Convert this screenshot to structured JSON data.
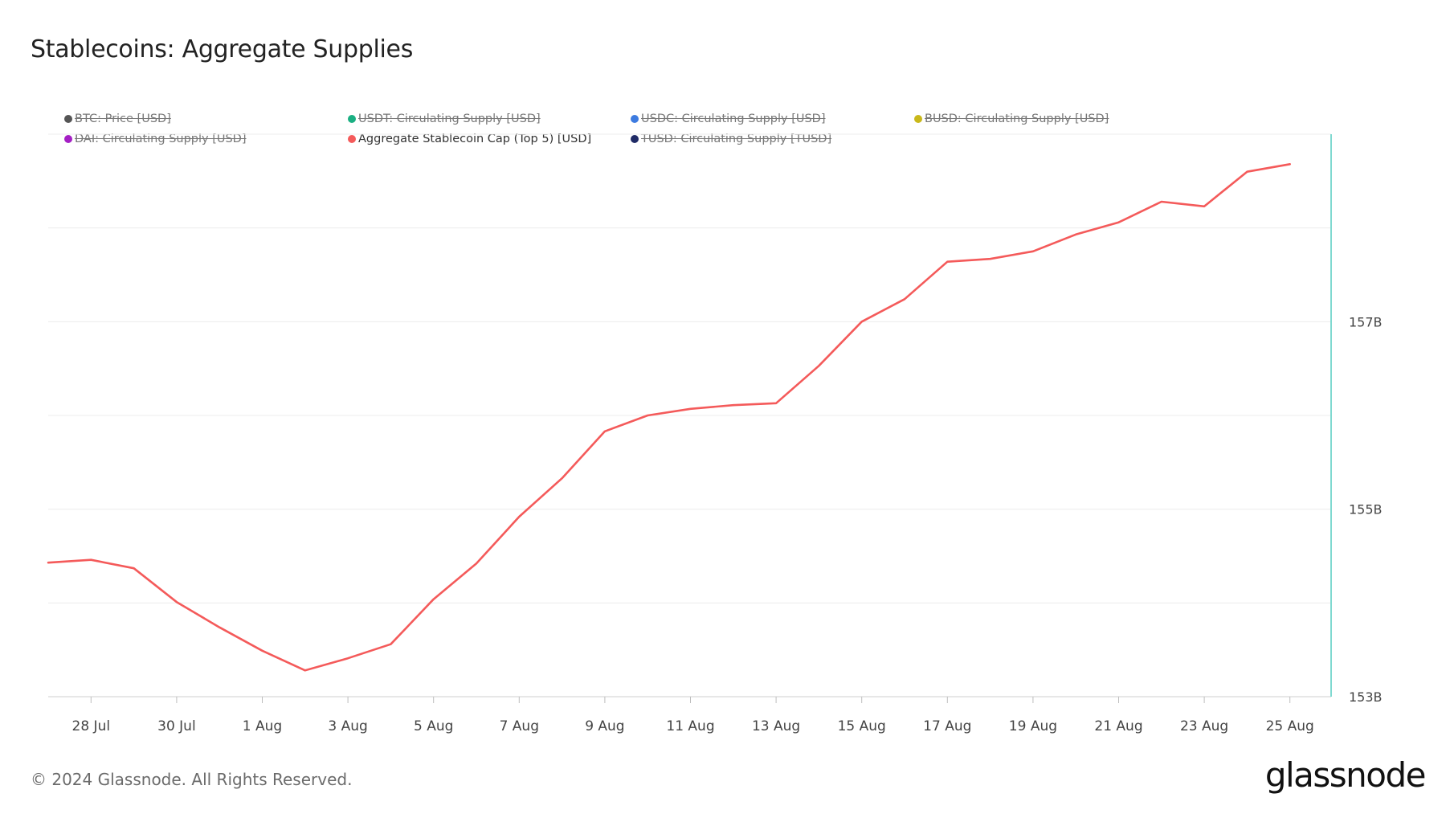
{
  "title": "Stablecoins: Aggregate Supplies",
  "legend": [
    {
      "label": "BTC: Price [USD]",
      "color": "#555555",
      "hidden": true
    },
    {
      "label": "USDT: Circulating Supply [USD]",
      "color": "#1aaf82",
      "hidden": true
    },
    {
      "label": "USDC: Circulating Supply [USD]",
      "color": "#3d7be0",
      "hidden": true
    },
    {
      "label": "BUSD: Circulating Supply [USD]",
      "color": "#c9b81a",
      "hidden": true
    },
    {
      "label": "DAI: Circulating Supply [USD]",
      "color": "#a41fc4",
      "hidden": true
    },
    {
      "label": "Aggregate Stablecoin Cap (Top 5) [USD]",
      "color": "#f45a5a",
      "hidden": false
    },
    {
      "label": "TUSD: Circulating Supply [TUSD]",
      "color": "#1f2a66",
      "hidden": true
    }
  ],
  "footer": "© 2024 Glassnode. All Rights Reserved.",
  "brand": "glassnode",
  "chart_data": {
    "type": "line",
    "x_tick_labels": [
      "28 Jul",
      "30 Jul",
      "1 Aug",
      "3 Aug",
      "5 Aug",
      "7 Aug",
      "9 Aug",
      "11 Aug",
      "13 Aug",
      "15 Aug",
      "17 Aug",
      "19 Aug",
      "21 Aug",
      "23 Aug",
      "25 Aug"
    ],
    "y_tick_labels": [
      "153B",
      "155B",
      "157B"
    ],
    "y_ticks": [
      153,
      155,
      157
    ],
    "ylim": [
      153,
      159
    ],
    "y_axis_side": "right",
    "grid": true,
    "legend_position": "top",
    "series": [
      {
        "name": "Aggregate Stablecoin Cap (Top 5) [USD]",
        "color": "#f45a5a",
        "unit": "B USD",
        "x": [
          "27 Jul",
          "28 Jul",
          "29 Jul",
          "30 Jul",
          "31 Jul",
          "1 Aug",
          "2 Aug",
          "3 Aug",
          "4 Aug",
          "5 Aug",
          "6 Aug",
          "7 Aug",
          "8 Aug",
          "9 Aug",
          "10 Aug",
          "11 Aug",
          "12 Aug",
          "13 Aug",
          "14 Aug",
          "15 Aug",
          "16 Aug",
          "17 Aug",
          "18 Aug",
          "19 Aug",
          "20 Aug",
          "21 Aug",
          "22 Aug",
          "23 Aug",
          "24 Aug",
          "25 Aug"
        ],
        "values": [
          154.43,
          154.46,
          154.37,
          154.01,
          153.74,
          153.49,
          153.28,
          153.41,
          153.56,
          154.04,
          154.42,
          154.92,
          155.33,
          155.83,
          156.0,
          156.07,
          156.11,
          156.13,
          156.53,
          157.0,
          157.24,
          157.64,
          157.67,
          157.75,
          157.93,
          158.06,
          158.28,
          158.23,
          158.6,
          158.68
        ]
      }
    ]
  }
}
